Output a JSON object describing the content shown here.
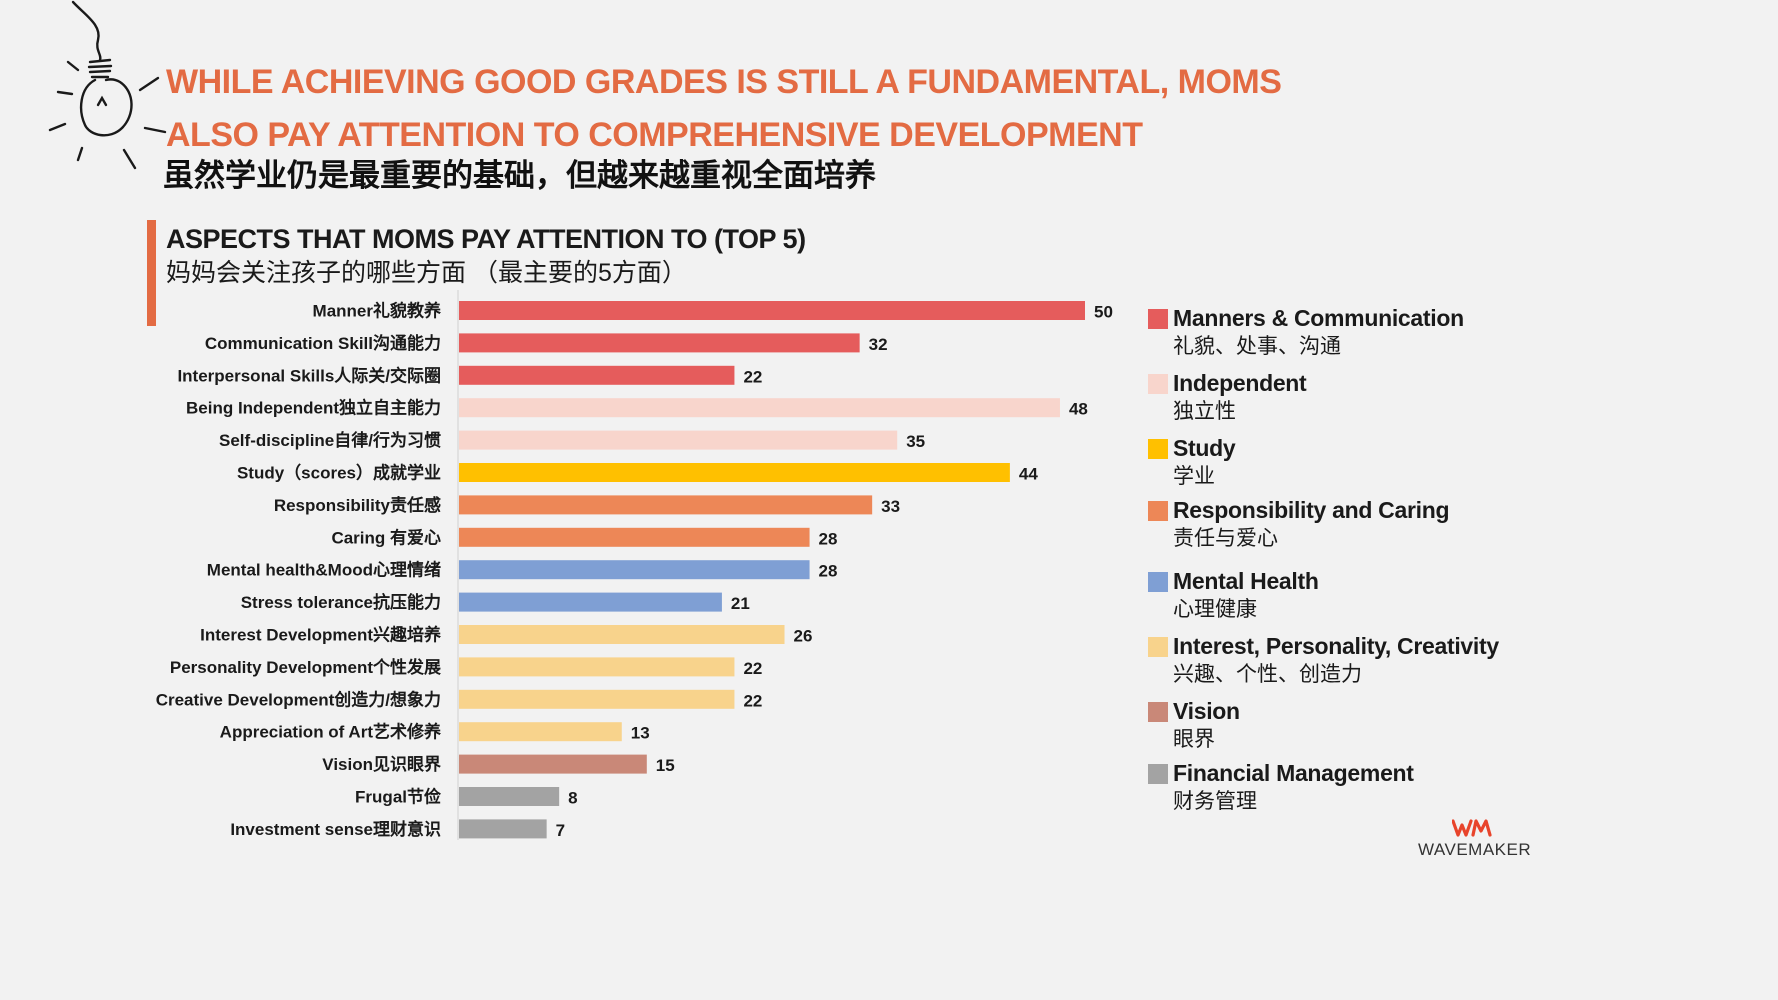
{
  "header": {
    "title_en": "WHILE ACHIEVING GOOD GRADES IS STILL A FUNDAMENTAL, MOMS ALSO PAY ATTENTION TO COMPREHENSIVE DEVELOPMENT",
    "title_cn": "虽然学业仍是最重要的基础，但越来越重视全面培养"
  },
  "chart_data": {
    "type": "bar",
    "orientation": "horizontal",
    "title": "ASPECTS THAT MOMS PAY ATTENTION TO (TOP 5)",
    "subtitle": "妈妈会关注孩子的哪些方面 （最主要的5方面）",
    "xlim": [
      0,
      50
    ],
    "grid": false,
    "legend_position": "right",
    "categories": [
      "Manner礼貌教养",
      "Communication Skill沟通能力",
      "Interpersonal Skills人际关/交际圈",
      "Being Independent独立自主能力",
      "Self-discipline自律/行为习惯",
      "Study（scores）成就学业",
      "Responsibility责任感",
      "Caring 有爱心",
      "Mental health&Mood心理情绪",
      "Stress tolerance抗压能力",
      "Interest Development兴趣培养",
      "Personality Development个性发展",
      "Creative Development创造力/想象力",
      "Appreciation of Art艺术修养",
      "Vision见识眼界",
      "Frugal节俭",
      "Investment sense理财意识"
    ],
    "values": [
      50,
      32,
      22,
      48,
      35,
      44,
      33,
      28,
      28,
      21,
      26,
      22,
      22,
      13,
      15,
      8,
      7
    ],
    "groups": [
      0,
      0,
      0,
      1,
      1,
      2,
      3,
      3,
      4,
      4,
      5,
      5,
      5,
      5,
      6,
      7,
      7
    ],
    "legend": [
      {
        "name": "Manners & Communication",
        "sub": "礼貌、处事、沟通",
        "color": "#e55c5c"
      },
      {
        "name": "Independent",
        "sub": "独立性",
        "color": "#f8d5cc"
      },
      {
        "name": "Study",
        "sub": "学业",
        "color": "#ffc000"
      },
      {
        "name": "Responsibility and Caring",
        "sub": "责任与爱心",
        "color": "#ed8757"
      },
      {
        "name": "Mental Health",
        "sub": "心理健康",
        "color": "#7f9fd4"
      },
      {
        "name": "Interest, Personality, Creativity",
        "sub": "兴趣、个性、创造力",
        "color": "#f8d38c"
      },
      {
        "name": "Vision",
        "sub": "眼界",
        "color": "#c98878"
      },
      {
        "name": "Financial Management",
        "sub": "财务管理",
        "color": "#a3a3a3"
      }
    ]
  },
  "logo": {
    "mark": "WM",
    "text": "WAVEMAKER",
    "color": "#e8442b"
  }
}
